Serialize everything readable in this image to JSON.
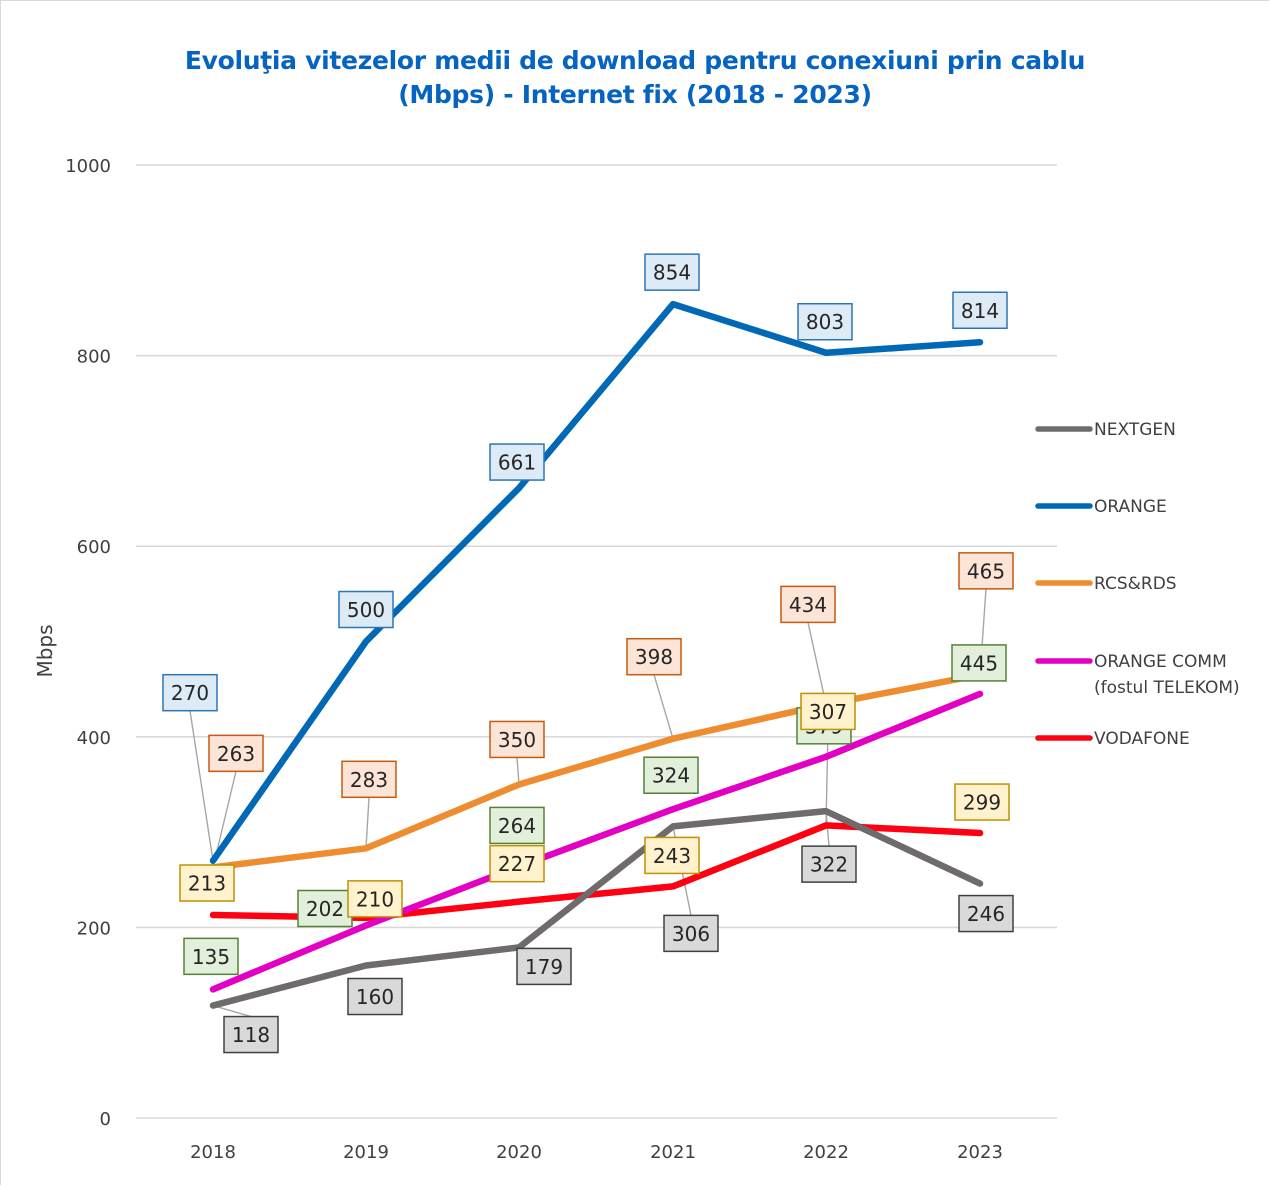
{
  "chart_data": {
    "type": "line",
    "title": "Evoluţia vitezelor medii de download pentru conexiuni prin cablu (Mbps) - Internet fix (2018 - 2023)",
    "title_lines": [
      "Evoluţia vitezelor medii de download pentru conexiuni prin cablu",
      "(Mbps) - Internet fix (2018 - 2023)"
    ],
    "title_color": "#0563c1",
    "xlabel": "",
    "ylabel": "Mbps",
    "categories": [
      "2018",
      "2019",
      "2020",
      "2021",
      "2022",
      "2023"
    ],
    "ylim": [
      0,
      1000
    ],
    "yticks": [
      0,
      200,
      400,
      600,
      800,
      1000
    ],
    "grid": true,
    "legend_position": "right",
    "series": [
      {
        "name": "NEXTGEN",
        "legend_lines": [
          "NEXTGEN"
        ],
        "color": "#6f6a6b",
        "label_fill": "#d9d9d9",
        "label_border": "#404040",
        "values": [
          118,
          160,
          179,
          306,
          322,
          246
        ]
      },
      {
        "name": "ORANGE",
        "legend_lines": [
          "ORANGE"
        ],
        "color": "#0068b5",
        "label_fill": "#ddebf7",
        "label_border": "#2e75b6",
        "values": [
          270,
          500,
          661,
          854,
          803,
          814
        ]
      },
      {
        "name": "RCS&RDS",
        "legend_lines": [
          "RCS&RDS"
        ],
        "color": "#ee8c30",
        "label_fill": "#fce4d6",
        "label_border": "#c55a11",
        "values": [
          263,
          283,
          350,
          398,
          434,
          465
        ]
      },
      {
        "name": "ORANGE COMM (fostul TELEKOM)",
        "legend_lines": [
          "ORANGE COMM",
          "(fostul TELEKOM)"
        ],
        "color": "#e200c4",
        "label_fill": "#e2efda",
        "label_border": "#548235",
        "values": [
          135,
          202,
          264,
          324,
          379,
          445
        ]
      },
      {
        "name": "VODAFONE",
        "legend_lines": [
          "VODAFONE"
        ],
        "color": "#ff0012",
        "label_fill": "#fff2cc",
        "label_border": "#bf9000",
        "values": [
          213,
          210,
          227,
          243,
          307,
          299
        ]
      }
    ]
  }
}
